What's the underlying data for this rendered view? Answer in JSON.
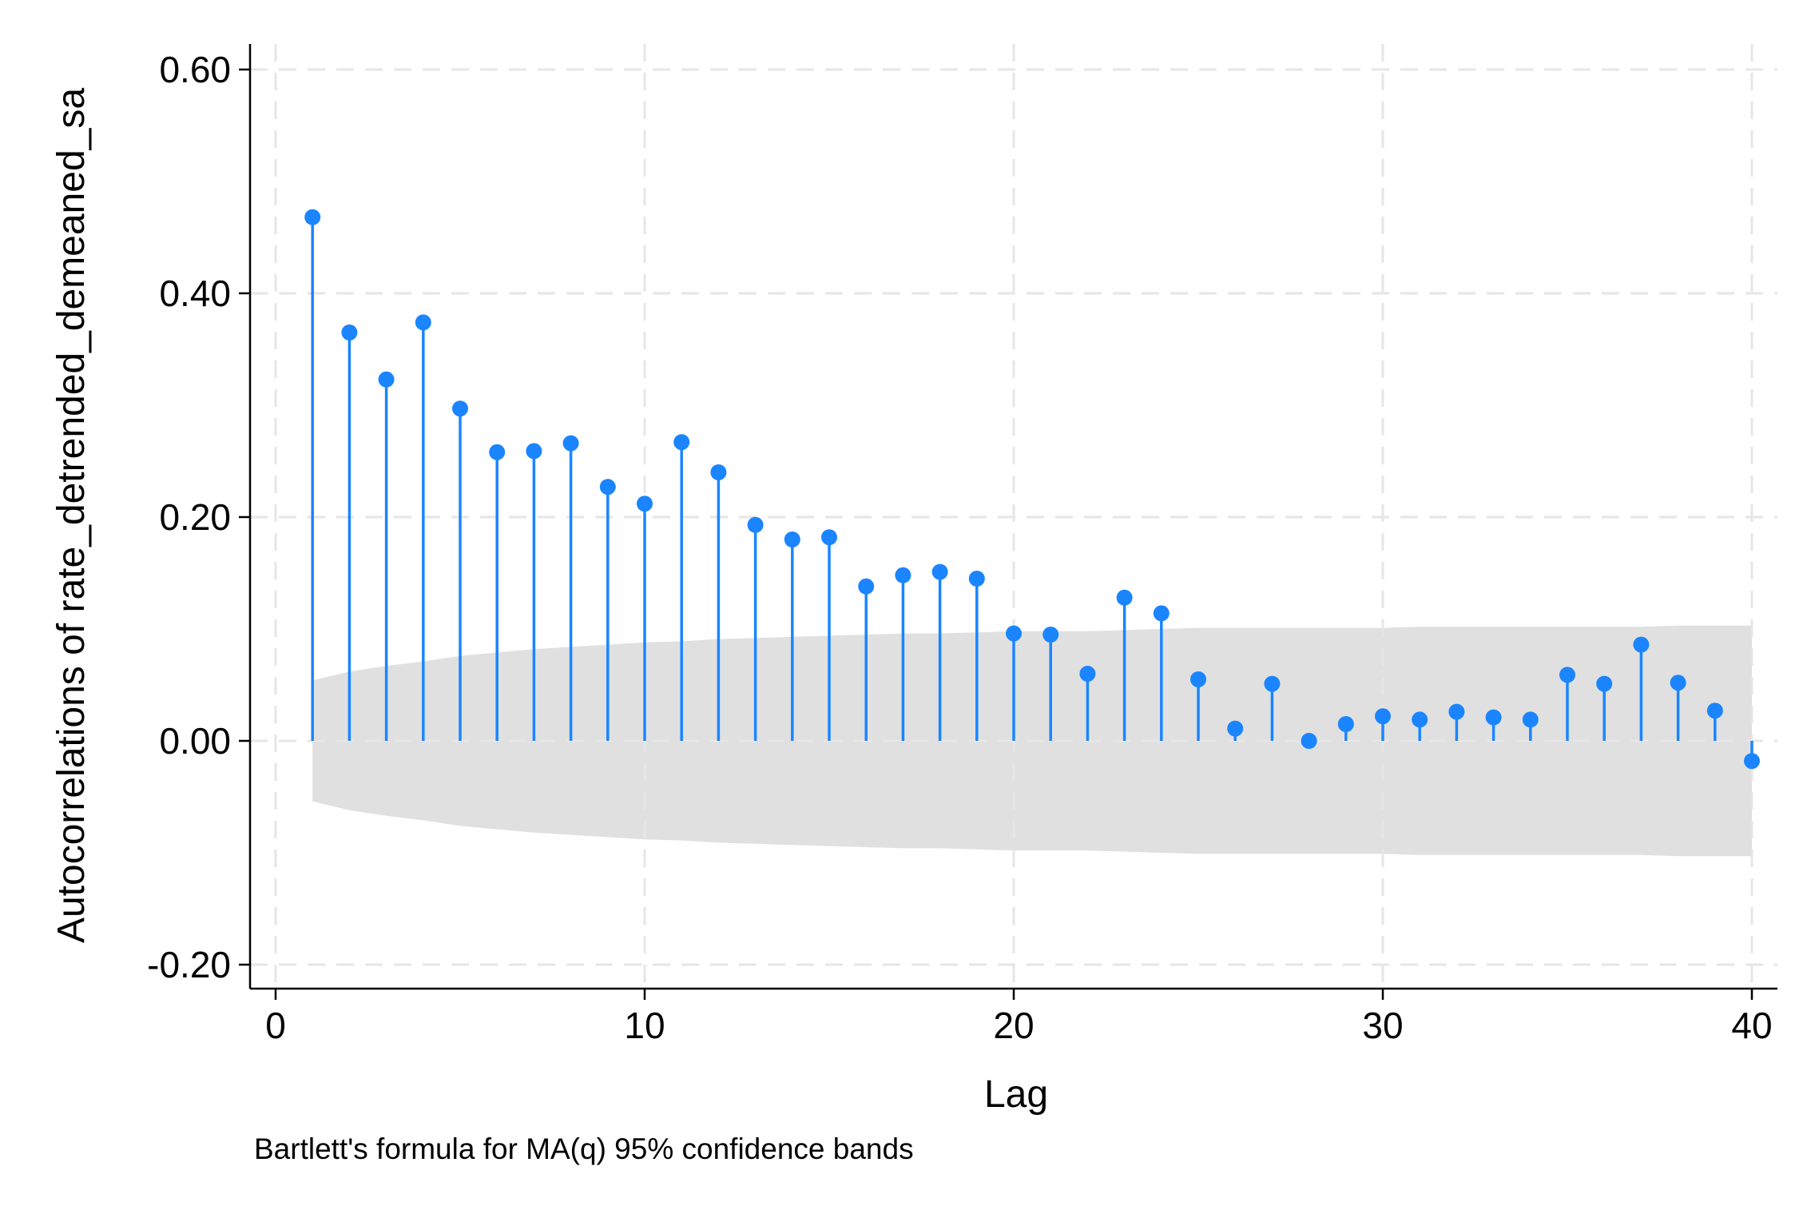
{
  "chart_data": {
    "type": "stem",
    "xlabel": "Lag",
    "ylabel": "Autocorrelations of rate_detrended_demeaned_sa",
    "note": "Bartlett's formula for MA(q) 95% confidence bands",
    "xlim": [
      0,
      40
    ],
    "ylim": [
      -0.2,
      0.6
    ],
    "x_ticks": [
      0,
      10,
      20,
      30,
      40
    ],
    "x_tick_labels": [
      "0",
      "10",
      "20",
      "30",
      "40"
    ],
    "y_ticks": [
      -0.2,
      0.0,
      0.2,
      0.4,
      0.6
    ],
    "y_tick_labels": [
      "-0.20",
      "0.00",
      "0.20",
      "0.40",
      "0.60"
    ],
    "grid": true,
    "colors": {
      "series": "#1a85ff",
      "band": "#e0e0e0",
      "grid": "#e6e6e6"
    },
    "series": [
      {
        "lags": [
          1,
          2,
          3,
          4,
          5,
          6,
          7,
          8,
          9,
          10,
          11,
          12,
          13,
          14,
          15,
          16,
          17,
          18,
          19,
          20,
          21,
          22,
          23,
          24,
          25,
          26,
          27,
          28,
          29,
          30,
          31,
          32,
          33,
          34,
          35,
          36,
          37,
          38,
          39,
          40
        ],
        "values": [
          0.468,
          0.365,
          0.323,
          0.374,
          0.297,
          0.258,
          0.259,
          0.266,
          0.227,
          0.212,
          0.267,
          0.24,
          0.193,
          0.18,
          0.182,
          0.138,
          0.148,
          0.151,
          0.145,
          0.096,
          0.095,
          0.06,
          0.128,
          0.114,
          0.055,
          0.011,
          0.051,
          0.0,
          0.015,
          0.022,
          0.019,
          0.026,
          0.021,
          0.019,
          0.059,
          0.051,
          0.086,
          0.052,
          0.027,
          -0.018
        ]
      }
    ],
    "confidence_band": {
      "lags": [
        1,
        2,
        3,
        4,
        5,
        6,
        7,
        8,
        9,
        10,
        11,
        12,
        13,
        14,
        15,
        16,
        17,
        18,
        19,
        20,
        21,
        22,
        23,
        24,
        25,
        26,
        27,
        28,
        29,
        30,
        31,
        32,
        33,
        34,
        35,
        36,
        37,
        38,
        39,
        40
      ],
      "upper": [
        0.054,
        0.062,
        0.067,
        0.071,
        0.076,
        0.079,
        0.082,
        0.084,
        0.086,
        0.088,
        0.089,
        0.091,
        0.092,
        0.093,
        0.094,
        0.095,
        0.096,
        0.096,
        0.097,
        0.098,
        0.098,
        0.098,
        0.099,
        0.1,
        0.101,
        0.101,
        0.101,
        0.101,
        0.101,
        0.101,
        0.102,
        0.102,
        0.102,
        0.102,
        0.102,
        0.102,
        0.102,
        0.103,
        0.103,
        0.103
      ]
    }
  }
}
